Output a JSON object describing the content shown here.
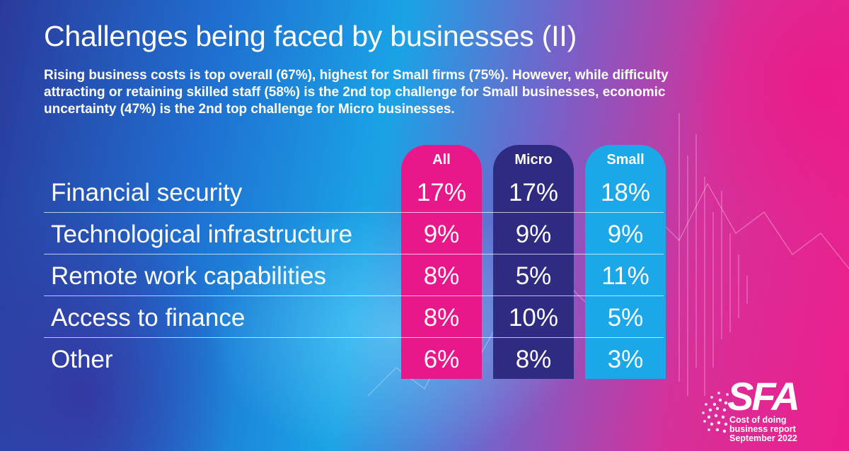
{
  "header": {
    "title": "Challenges being faced by businesses (II)",
    "subtitle": "Rising business costs is top overall (67%), highest for Small firms (75%). However, while difficulty attracting or retaining skilled staff (58%) is the 2nd top challenge for Small businesses, economic uncertainty (47%) is the 2nd top challenge for Micro businesses."
  },
  "chart_data": {
    "type": "table",
    "columns": [
      "All",
      "Micro",
      "Small"
    ],
    "rows": [
      {
        "label": "Financial security",
        "values": [
          "17%",
          "17%",
          "18%"
        ]
      },
      {
        "label": "Technological infrastructure",
        "values": [
          "9%",
          "9%",
          "9%"
        ]
      },
      {
        "label": "Remote work capabilities",
        "values": [
          "8%",
          "5%",
          "11%"
        ]
      },
      {
        "label": "Access to finance",
        "values": [
          "8%",
          "10%",
          "5%"
        ]
      },
      {
        "label": "Other",
        "values": [
          "6%",
          "8%",
          "3%"
        ]
      }
    ],
    "column_colors": [
      "#e8188a",
      "#2e2b80",
      "#1ba7e8"
    ]
  },
  "branding": {
    "logo_text": "SFA",
    "report_caption": "Cost of doing\nbusiness report\nSeptember 2022"
  }
}
